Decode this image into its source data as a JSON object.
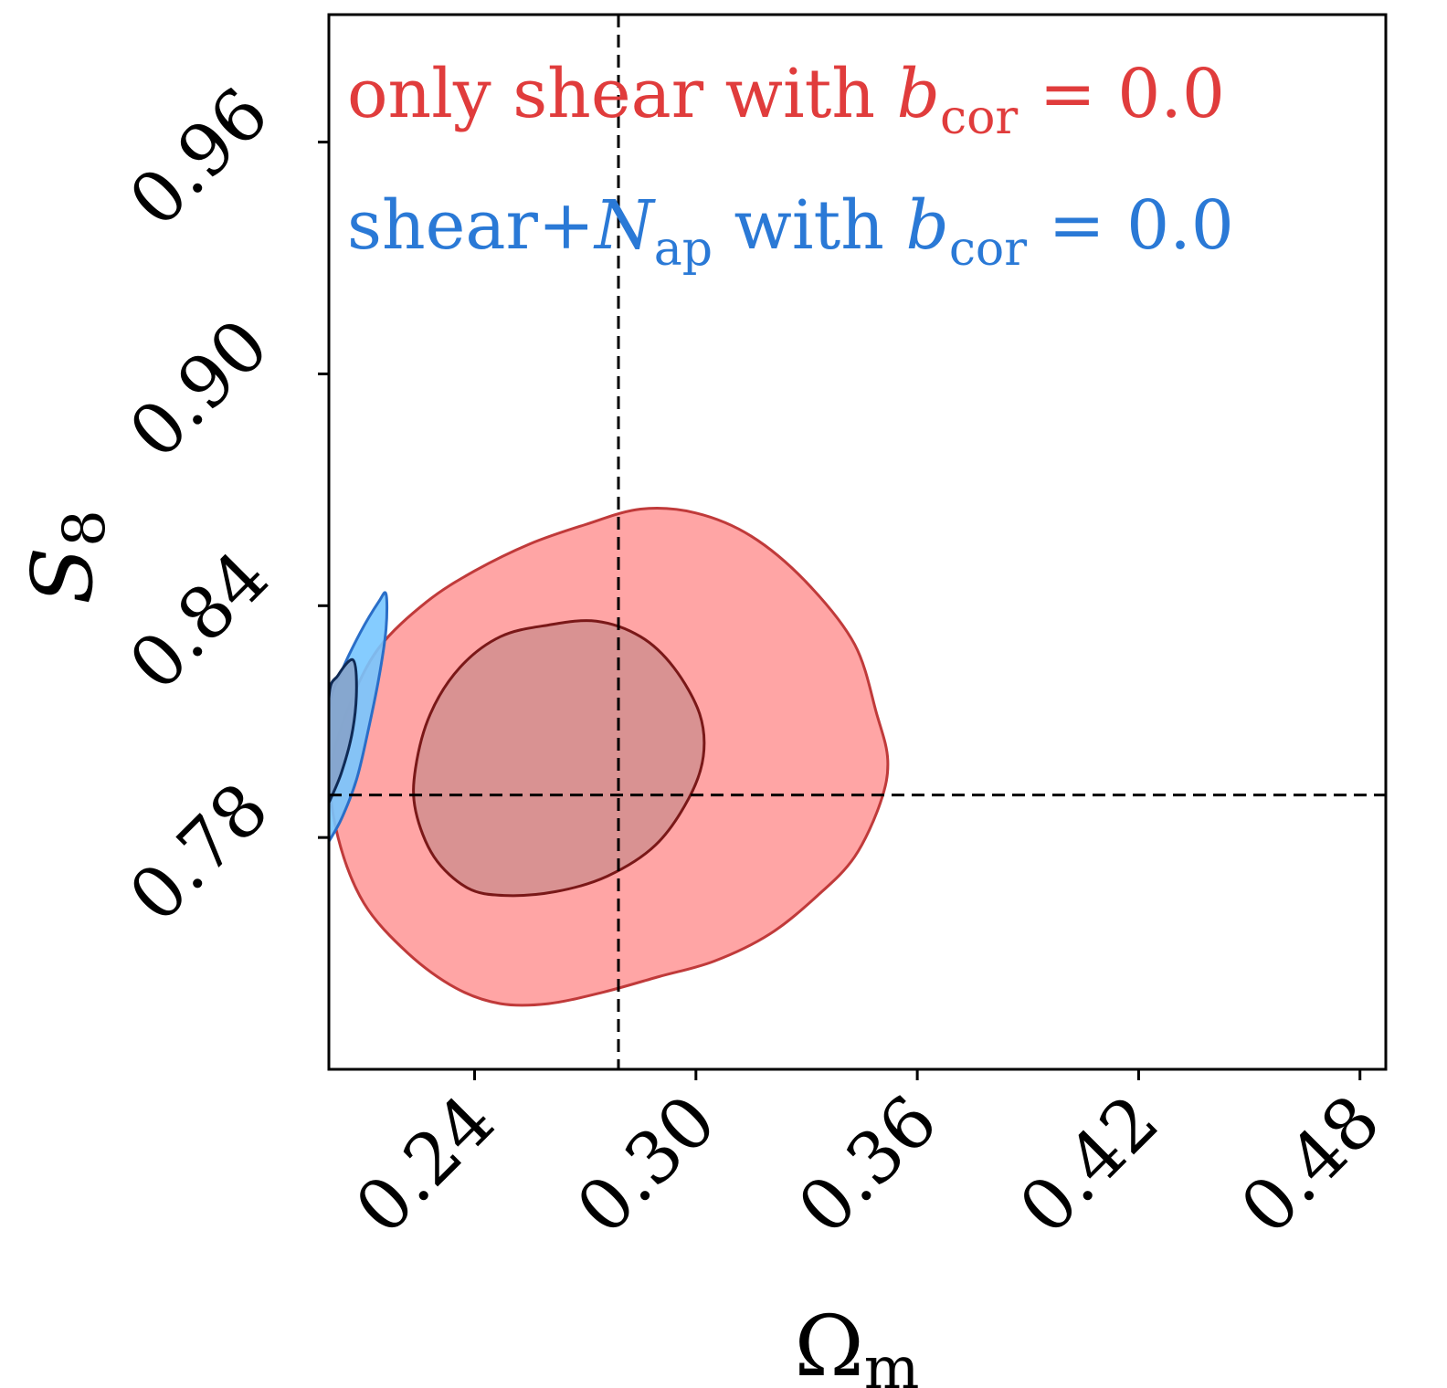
{
  "chart_data": {
    "type": "contour",
    "xlabel": {
      "symbol": "Ω",
      "subscript": "m"
    },
    "ylabel": {
      "symbol": "S",
      "subscript": "8"
    },
    "xlim": [
      0.2005,
      0.487
    ],
    "ylim": [
      0.72,
      0.993
    ],
    "xticks": [
      0.24,
      0.3,
      0.36,
      0.42,
      0.48
    ],
    "xtick_labels": [
      "0.24",
      "0.30",
      "0.36",
      "0.42",
      "0.48"
    ],
    "yticks": [
      0.78,
      0.84,
      0.9,
      0.96
    ],
    "ytick_labels": [
      "0.78",
      "0.84",
      "0.90",
      "0.96"
    ],
    "grid": false,
    "legend_position": "top-left",
    "reference_lines": {
      "x": 0.279,
      "y": 0.791
    },
    "series": [
      {
        "name": "only shear with b_cor = 0.0",
        "legend": {
          "pre": "only shear with ",
          "var": "b",
          "sub": "cor",
          "post": " = 0.0"
        },
        "color": "#e03c3c",
        "fill_outer": "#ffa5a5",
        "fill_inner": "#d99292",
        "edge_outer": "#c03a3a",
        "edge_inner": "#7a1818",
        "contours": [
          {
            "level": "95%",
            "points": [
              [
                0.201,
                0.797
              ],
              [
                0.206,
                0.814
              ],
              [
                0.214,
                0.829
              ],
              [
                0.227,
                0.841
              ],
              [
                0.24,
                0.849
              ],
              [
                0.255,
                0.856
              ],
              [
                0.27,
                0.861
              ],
              [
                0.285,
                0.865
              ],
              [
                0.3,
                0.864
              ],
              [
                0.315,
                0.858
              ],
              [
                0.33,
                0.846
              ],
              [
                0.343,
                0.83
              ],
              [
                0.349,
                0.812
              ],
              [
                0.352,
                0.8
              ],
              [
                0.35,
                0.789
              ],
              [
                0.343,
                0.775
              ],
              [
                0.333,
                0.765
              ],
              [
                0.32,
                0.755
              ],
              [
                0.305,
                0.748
              ],
              [
                0.29,
                0.744
              ],
              [
                0.275,
                0.74
              ],
              [
                0.26,
                0.737
              ],
              [
                0.247,
                0.737
              ],
              [
                0.235,
                0.741
              ],
              [
                0.222,
                0.75
              ],
              [
                0.21,
                0.763
              ],
              [
                0.203,
                0.78
              ]
            ]
          },
          {
            "level": "68%",
            "points": [
              [
                0.224,
                0.798
              ],
              [
                0.228,
                0.812
              ],
              [
                0.236,
                0.824
              ],
              [
                0.247,
                0.832
              ],
              [
                0.26,
                0.835
              ],
              [
                0.273,
                0.836
              ],
              [
                0.285,
                0.832
              ],
              [
                0.294,
                0.824
              ],
              [
                0.301,
                0.812
              ],
              [
                0.302,
                0.801
              ],
              [
                0.298,
                0.79
              ],
              [
                0.289,
                0.778
              ],
              [
                0.276,
                0.77
              ],
              [
                0.262,
                0.766
              ],
              [
                0.248,
                0.765
              ],
              [
                0.238,
                0.767
              ],
              [
                0.229,
                0.775
              ],
              [
                0.224,
                0.787
              ]
            ]
          }
        ]
      },
      {
        "name": "shear+N_ap with b_cor = 0.0",
        "legend": {
          "pre": "shear+",
          "var": "N",
          "varSub": "ap",
          "mid": " with ",
          "var2": "b",
          "sub": "cor",
          "post": " = 0.0"
        },
        "color": "#2a79d6",
        "fill_outer": "#78c6ff",
        "fill_inner": "#86a4cc",
        "edge_outer": "#2a6ec8",
        "edge_inner": "#0f2a55",
        "contours": [
          {
            "level": "95%",
            "points": [
              [
                0.2005,
                0.779
              ],
              [
                0.2005,
                0.812
              ],
              [
                0.204,
                0.823
              ],
              [
                0.209,
                0.833
              ],
              [
                0.214,
                0.841
              ],
              [
                0.216,
                0.843
              ],
              [
                0.216,
                0.834
              ],
              [
                0.214,
                0.821
              ],
              [
                0.211,
                0.807
              ],
              [
                0.208,
                0.795
              ],
              [
                0.204,
                0.785
              ],
              [
                0.2005,
                0.779
              ]
            ]
          },
          {
            "level": "68%",
            "points": [
              [
                0.2005,
                0.789
              ],
              [
                0.2005,
                0.816
              ],
              [
                0.203,
                0.822
              ],
              [
                0.207,
                0.826
              ],
              [
                0.208,
                0.819
              ],
              [
                0.207,
                0.808
              ],
              [
                0.204,
                0.797
              ],
              [
                0.2005,
                0.789
              ]
            ]
          }
        ]
      }
    ]
  }
}
